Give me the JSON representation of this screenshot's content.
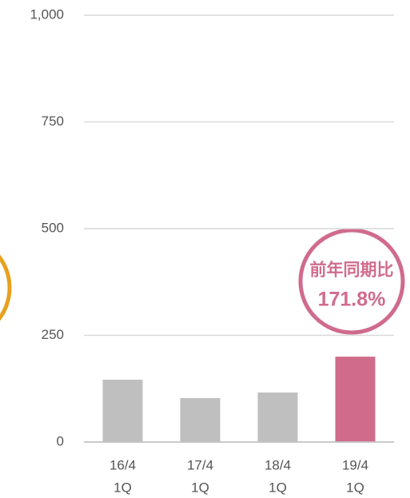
{
  "chart_data": {
    "type": "bar",
    "categories": [
      [
        "16/4",
        "1Q"
      ],
      [
        "17/4",
        "1Q"
      ],
      [
        "18/4",
        "1Q"
      ],
      [
        "19/4",
        "1Q"
      ]
    ],
    "values": [
      146,
      103,
      116,
      200
    ],
    "colors": [
      "#bfbfbf",
      "#bfbfbf",
      "#bfbfbf",
      "#d06b8c"
    ],
    "ylim": [
      0,
      1000
    ],
    "yticks": [
      0,
      250,
      500,
      750,
      {
        "value": 1000,
        "label": "1,000"
      }
    ],
    "grid": true,
    "annotation": [
      "前年同期比",
      "171.8%"
    ]
  }
}
